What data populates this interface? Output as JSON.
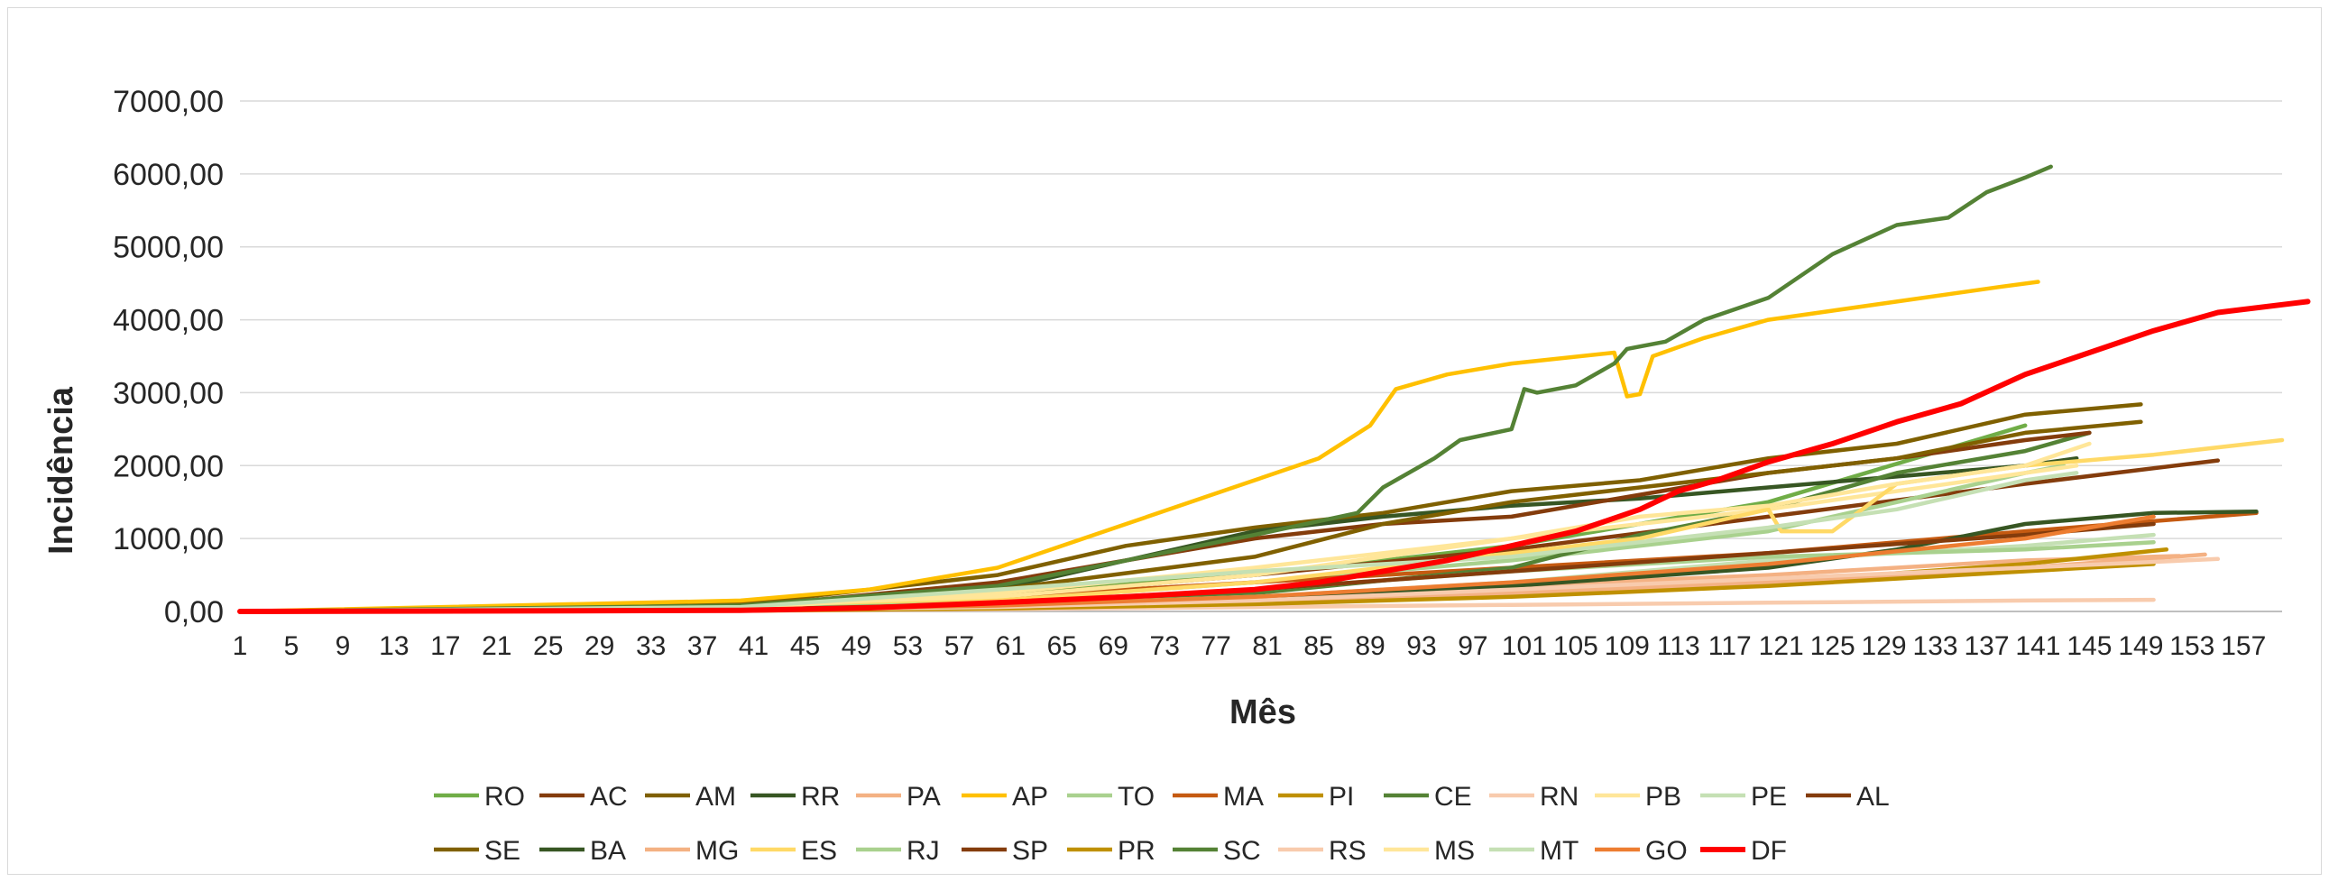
{
  "chart_data": {
    "type": "line",
    "title": "",
    "xlabel": "Mês",
    "ylabel": "Incidência",
    "ylim": [
      0,
      7000
    ],
    "y_ticks": [
      "0,00",
      "1000,00",
      "2000,00",
      "3000,00",
      "4000,00",
      "5000,00",
      "6000,00",
      "7000,00"
    ],
    "x_ticks": [
      "1",
      "5",
      "9",
      "13",
      "17",
      "21",
      "25",
      "29",
      "33",
      "37",
      "41",
      "45",
      "49",
      "53",
      "57",
      "61",
      "65",
      "69",
      "73",
      "77",
      "81",
      "85",
      "89",
      "93",
      "97",
      "101",
      "105",
      "109",
      "113",
      "117",
      "121",
      "125",
      "129",
      "133",
      "137",
      "141",
      "145",
      "149",
      "153",
      "157"
    ],
    "grid": true,
    "legend_position": "bottom",
    "series": [
      {
        "name": "RO",
        "color": "#70AD47",
        "points": [
          [
            1,
            0
          ],
          [
            40,
            60
          ],
          [
            60,
            250
          ],
          [
            80,
            500
          ],
          [
            100,
            900
          ],
          [
            120,
            1500
          ],
          [
            140,
            2550
          ]
        ]
      },
      {
        "name": "AC",
        "color": "#843C0C",
        "points": [
          [
            1,
            0
          ],
          [
            40,
            50
          ],
          [
            60,
            200
          ],
          [
            80,
            500
          ],
          [
            100,
            850
          ],
          [
            120,
            1300
          ],
          [
            140,
            1750
          ],
          [
            155,
            2070
          ]
        ]
      },
      {
        "name": "AM",
        "color": "#7F6000",
        "points": [
          [
            1,
            0
          ],
          [
            40,
            100
          ],
          [
            60,
            500
          ],
          [
            70,
            900
          ],
          [
            80,
            1150
          ],
          [
            90,
            1350
          ],
          [
            100,
            1650
          ],
          [
            110,
            1800
          ],
          [
            120,
            2100
          ],
          [
            130,
            2300
          ],
          [
            140,
            2700
          ],
          [
            149,
            2840
          ]
        ]
      },
      {
        "name": "RR",
        "color": "#375623",
        "points": [
          [
            1,
            0
          ],
          [
            40,
            50
          ],
          [
            60,
            300
          ],
          [
            70,
            700
          ],
          [
            80,
            1100
          ],
          [
            90,
            1300
          ],
          [
            100,
            1450
          ],
          [
            110,
            1550
          ],
          [
            120,
            1700
          ],
          [
            130,
            1850
          ],
          [
            140,
            2000
          ],
          [
            144,
            2100
          ]
        ]
      },
      {
        "name": "PA",
        "color": "#F4B183",
        "points": [
          [
            1,
            0
          ],
          [
            40,
            20
          ],
          [
            60,
            80
          ],
          [
            80,
            200
          ],
          [
            100,
            350
          ],
          [
            120,
            500
          ],
          [
            140,
            700
          ],
          [
            152,
            760
          ]
        ]
      },
      {
        "name": "AP",
        "color": "#FFC000",
        "points": [
          [
            1,
            0
          ],
          [
            40,
            150
          ],
          [
            50,
            300
          ],
          [
            60,
            600
          ],
          [
            70,
            1200
          ],
          [
            80,
            1800
          ],
          [
            85,
            2100
          ],
          [
            89,
            2550
          ],
          [
            91,
            3050
          ],
          [
            95,
            3250
          ],
          [
            100,
            3400
          ],
          [
            108,
            3550
          ],
          [
            109,
            2950
          ],
          [
            110,
            2980
          ],
          [
            111,
            3500
          ],
          [
            115,
            3750
          ],
          [
            120,
            4000
          ],
          [
            130,
            4250
          ],
          [
            138,
            4450
          ],
          [
            141,
            4520
          ]
        ]
      },
      {
        "name": "TO",
        "color": "#A9D18E",
        "points": [
          [
            1,
            0
          ],
          [
            40,
            40
          ],
          [
            60,
            150
          ],
          [
            80,
            400
          ],
          [
            100,
            700
          ],
          [
            120,
            1100
          ],
          [
            140,
            1900
          ],
          [
            143,
            2000
          ]
        ]
      },
      {
        "name": "MA",
        "color": "#C55A11",
        "points": [
          [
            1,
            0
          ],
          [
            40,
            40
          ],
          [
            60,
            200
          ],
          [
            80,
            400
          ],
          [
            100,
            600
          ],
          [
            120,
            800
          ],
          [
            140,
            1100
          ],
          [
            158,
            1350
          ]
        ]
      },
      {
        "name": "PI",
        "color": "#BF9000",
        "points": [
          [
            1,
            0
          ],
          [
            40,
            20
          ],
          [
            60,
            80
          ],
          [
            80,
            150
          ],
          [
            100,
            250
          ],
          [
            120,
            400
          ],
          [
            140,
            650
          ],
          [
            151,
            850
          ]
        ]
      },
      {
        "name": "CE",
        "color": "#548235",
        "points": [
          [
            1,
            0
          ],
          [
            40,
            30
          ],
          [
            60,
            100
          ],
          [
            80,
            250
          ],
          [
            100,
            600
          ],
          [
            110,
            1050
          ],
          [
            120,
            1400
          ],
          [
            130,
            1900
          ],
          [
            140,
            2200
          ],
          [
            145,
            2450
          ]
        ]
      },
      {
        "name": "RN",
        "color": "#F8CBAD",
        "points": [
          [
            1,
            0
          ],
          [
            40,
            10
          ],
          [
            60,
            30
          ],
          [
            80,
            60
          ],
          [
            100,
            90
          ],
          [
            120,
            120
          ],
          [
            140,
            150
          ],
          [
            150,
            160
          ]
        ]
      },
      {
        "name": "PB",
        "color": "#FFE699",
        "points": [
          [
            1,
            0
          ],
          [
            40,
            50
          ],
          [
            60,
            200
          ],
          [
            80,
            500
          ],
          [
            100,
            1000
          ],
          [
            120,
            1400
          ],
          [
            140,
            1900
          ],
          [
            144,
            2000
          ]
        ]
      },
      {
        "name": "PE",
        "color": "#C5E0B4",
        "points": [
          [
            1,
            0
          ],
          [
            40,
            20
          ],
          [
            60,
            80
          ],
          [
            80,
            200
          ],
          [
            100,
            400
          ],
          [
            120,
            700
          ],
          [
            140,
            900
          ],
          [
            150,
            1050
          ]
        ]
      },
      {
        "name": "AL",
        "color": "#843C0C",
        "points": [
          [
            1,
            0
          ],
          [
            40,
            60
          ],
          [
            60,
            400
          ],
          [
            70,
            700
          ],
          [
            80,
            1000
          ],
          [
            90,
            1200
          ],
          [
            100,
            1300
          ],
          [
            110,
            1600
          ],
          [
            120,
            1900
          ],
          [
            130,
            2100
          ],
          [
            140,
            2350
          ],
          [
            145,
            2450
          ]
        ]
      },
      {
        "name": "SE",
        "color": "#806000",
        "points": [
          [
            1,
            0
          ],
          [
            40,
            50
          ],
          [
            60,
            300
          ],
          [
            80,
            750
          ],
          [
            90,
            1200
          ],
          [
            100,
            1500
          ],
          [
            110,
            1700
          ],
          [
            120,
            1900
          ],
          [
            130,
            2100
          ],
          [
            140,
            2450
          ],
          [
            149,
            2600
          ]
        ]
      },
      {
        "name": "BA",
        "color": "#375623",
        "points": [
          [
            1,
            0
          ],
          [
            40,
            20
          ],
          [
            60,
            60
          ],
          [
            80,
            150
          ],
          [
            100,
            350
          ],
          [
            120,
            600
          ],
          [
            130,
            850
          ],
          [
            140,
            1200
          ],
          [
            150,
            1350
          ],
          [
            158,
            1370
          ]
        ]
      },
      {
        "name": "MG",
        "color": "#F4B183",
        "points": [
          [
            1,
            0
          ],
          [
            40,
            15
          ],
          [
            60,
            60
          ],
          [
            80,
            130
          ],
          [
            100,
            250
          ],
          [
            120,
            400
          ],
          [
            140,
            600
          ],
          [
            154,
            780
          ]
        ]
      },
      {
        "name": "ES",
        "color": "#FFD966",
        "points": [
          [
            1,
            0
          ],
          [
            40,
            30
          ],
          [
            60,
            150
          ],
          [
            80,
            400
          ],
          [
            100,
            800
          ],
          [
            110,
            1000
          ],
          [
            120,
            1400
          ],
          [
            121,
            1100
          ],
          [
            125,
            1100
          ],
          [
            130,
            1750
          ],
          [
            140,
            2000
          ],
          [
            150,
            2150
          ],
          [
            160,
            2350
          ]
        ]
      },
      {
        "name": "RJ",
        "color": "#A9D18E",
        "points": [
          [
            1,
            0
          ],
          [
            40,
            30
          ],
          [
            60,
            120
          ],
          [
            80,
            300
          ],
          [
            100,
            550
          ],
          [
            120,
            750
          ],
          [
            140,
            850
          ],
          [
            150,
            950
          ]
        ]
      },
      {
        "name": "SP",
        "color": "#843C0C",
        "points": [
          [
            1,
            0
          ],
          [
            40,
            25
          ],
          [
            60,
            100
          ],
          [
            80,
            300
          ],
          [
            100,
            550
          ],
          [
            120,
            800
          ],
          [
            140,
            1050
          ],
          [
            150,
            1200
          ]
        ]
      },
      {
        "name": "PR",
        "color": "#BF9000",
        "points": [
          [
            1,
            0
          ],
          [
            40,
            10
          ],
          [
            60,
            40
          ],
          [
            80,
            100
          ],
          [
            100,
            200
          ],
          [
            120,
            350
          ],
          [
            140,
            550
          ],
          [
            150,
            650
          ]
        ]
      },
      {
        "name": "SC",
        "color": "#548235",
        "points": [
          [
            1,
            0
          ],
          [
            40,
            80
          ],
          [
            60,
            350
          ],
          [
            70,
            700
          ],
          [
            80,
            1050
          ],
          [
            88,
            1350
          ],
          [
            90,
            1700
          ],
          [
            94,
            2100
          ],
          [
            96,
            2350
          ],
          [
            100,
            2500
          ],
          [
            101,
            3050
          ],
          [
            102,
            3000
          ],
          [
            105,
            3100
          ],
          [
            108,
            3400
          ],
          [
            109,
            3600
          ],
          [
            112,
            3700
          ],
          [
            115,
            4000
          ],
          [
            120,
            4300
          ],
          [
            125,
            4900
          ],
          [
            130,
            5300
          ],
          [
            134,
            5400
          ],
          [
            137,
            5750
          ],
          [
            140,
            5950
          ],
          [
            142,
            6100
          ]
        ]
      },
      {
        "name": "RS",
        "color": "#F8CBAD",
        "points": [
          [
            1,
            0
          ],
          [
            40,
            20
          ],
          [
            60,
            60
          ],
          [
            80,
            150
          ],
          [
            100,
            300
          ],
          [
            120,
            450
          ],
          [
            140,
            600
          ],
          [
            155,
            720
          ]
        ]
      },
      {
        "name": "MS",
        "color": "#FFE699",
        "points": [
          [
            1,
            0
          ],
          [
            40,
            50
          ],
          [
            60,
            250
          ],
          [
            80,
            600
          ],
          [
            100,
            1000
          ],
          [
            110,
            1300
          ],
          [
            120,
            1450
          ],
          [
            130,
            1750
          ],
          [
            140,
            2000
          ],
          [
            145,
            2300
          ]
        ]
      },
      {
        "name": "MT",
        "color": "#C5E0B4",
        "points": [
          [
            1,
            0
          ],
          [
            40,
            60
          ],
          [
            60,
            300
          ],
          [
            80,
            550
          ],
          [
            100,
            750
          ],
          [
            120,
            1150
          ],
          [
            130,
            1400
          ],
          [
            140,
            1800
          ],
          [
            144,
            1900
          ]
        ]
      },
      {
        "name": "GO",
        "color": "#ED7D31",
        "points": [
          [
            1,
            0
          ],
          [
            40,
            20
          ],
          [
            60,
            80
          ],
          [
            80,
            200
          ],
          [
            100,
            400
          ],
          [
            120,
            650
          ],
          [
            140,
            1000
          ],
          [
            150,
            1300
          ]
        ]
      },
      {
        "name": "DF",
        "color": "#FF0000",
        "points": [
          [
            1,
            0
          ],
          [
            40,
            15
          ],
          [
            50,
            50
          ],
          [
            60,
            120
          ],
          [
            70,
            200
          ],
          [
            80,
            300
          ],
          [
            85,
            400
          ],
          [
            90,
            550
          ],
          [
            95,
            700
          ],
          [
            100,
            900
          ],
          [
            105,
            1100
          ],
          [
            110,
            1400
          ],
          [
            113,
            1650
          ],
          [
            116,
            1800
          ],
          [
            120,
            2050
          ],
          [
            125,
            2300
          ],
          [
            130,
            2600
          ],
          [
            135,
            2850
          ],
          [
            140,
            3250
          ],
          [
            145,
            3550
          ],
          [
            150,
            3850
          ],
          [
            155,
            4100
          ],
          [
            162,
            4250
          ]
        ]
      }
    ]
  }
}
